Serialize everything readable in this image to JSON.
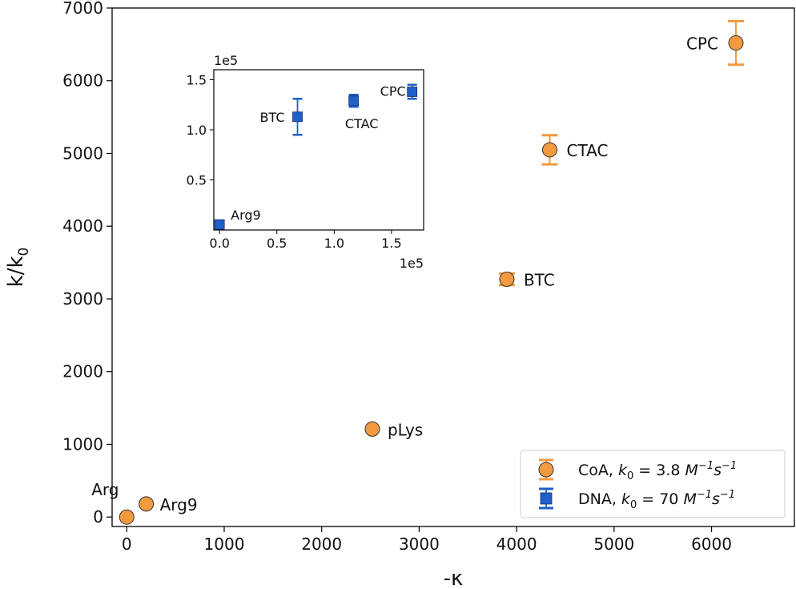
{
  "chart_data": [
    {
      "id": "main",
      "type": "scatter",
      "xlabel": "-κ",
      "ylabel_main": "k/k",
      "ylabel_sub": "0",
      "xlim": [
        -150,
        6850
      ],
      "ylim": [
        -130,
        7000
      ],
      "xticks": [
        0,
        1000,
        2000,
        3000,
        4000,
        5000,
        6000
      ],
      "yticks": [
        0,
        1000,
        2000,
        3000,
        4000,
        5000,
        6000,
        7000
      ],
      "grid": false,
      "legend_position": "bottom-right",
      "series": [
        {
          "name": "CoA",
          "legend_label": "CoA, k0 = 3.8 M^-1 s^-1",
          "color": "#f29a3f",
          "marker": "circle",
          "points": [
            {
              "label": "Arg",
              "x": 0,
              "y": 0,
              "err": 0
            },
            {
              "label": "Arg9",
              "x": 200,
              "y": 180,
              "err": 0
            },
            {
              "label": "pLys",
              "x": 2520,
              "y": 1210,
              "err": 0
            },
            {
              "label": "BTC",
              "x": 3900,
              "y": 3270,
              "err": 80
            },
            {
              "label": "CTAC",
              "x": 4340,
              "y": 5050,
              "err": 200
            },
            {
              "label": "CPC",
              "x": 6250,
              "y": 6520,
              "err": 300
            }
          ]
        }
      ]
    },
    {
      "id": "inset",
      "type": "scatter",
      "xlim": [
        -5000,
        178000
      ],
      "ylim": [
        0,
        160000
      ],
      "xticks": [
        "0.0",
        "0.5",
        "1.0",
        "1.5"
      ],
      "xtick_values": [
        0,
        50000,
        100000,
        150000
      ],
      "yticks": [
        "0.5",
        "1.0",
        "1.5"
      ],
      "ytick_values": [
        50000,
        100000,
        150000
      ],
      "x_offset_label": "1e5",
      "y_offset_label": "1e5",
      "grid": false,
      "series": [
        {
          "name": "DNA",
          "legend_label": "DNA, k0 = 70 M^-1 s^-1",
          "color": "#1f5fc8",
          "marker": "square",
          "points": [
            {
              "label": "Arg9",
              "x": 0,
              "y": 5500,
              "err": 0
            },
            {
              "label": "BTC",
              "x": 68000,
              "y": 113000,
              "err": 18000
            },
            {
              "label": "CTAC",
              "x": 117000,
              "y": 129000,
              "err": 6000
            },
            {
              "label": "CPC",
              "x": 168000,
              "y": 138000,
              "err": 7000
            }
          ]
        }
      ]
    }
  ],
  "legend": [
    {
      "series": "CoA",
      "text": "CoA, ",
      "k": "k",
      "sub": "0",
      "eq": " = 3.8 ",
      "unit_a": "M",
      "exp_a": "−1",
      "unit_b": "s",
      "exp_b": "−1",
      "color": "#f29a3f",
      "marker": "circle"
    },
    {
      "series": "DNA",
      "text": "DNA, ",
      "k": "k",
      "sub": "0",
      "eq": " = 70 ",
      "unit_a": "M",
      "exp_a": "−1",
      "unit_b": "s",
      "exp_b": "−1",
      "color": "#1f5fc8",
      "marker": "square"
    }
  ]
}
